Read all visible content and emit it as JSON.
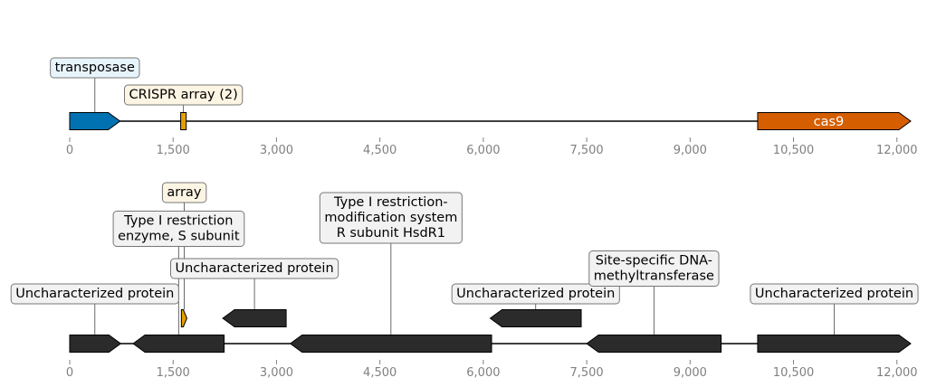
{
  "tracks": [
    {
      "id": "top",
      "axis": {
        "min": 0,
        "max": 12200,
        "ticks": [
          0,
          1500,
          3000,
          4500,
          6000,
          7500,
          9000,
          10500,
          12000
        ],
        "tick_labels": [
          "0",
          "1,500",
          "3,000",
          "4,500",
          "6,000",
          "7,500",
          "9,000",
          "10,500",
          "12,000"
        ]
      },
      "features": [
        {
          "name": "transposase-feature",
          "start": 0,
          "end": 730,
          "strand": 1,
          "row": 0,
          "color": "#0072B2"
        },
        {
          "name": "crispr-array-feature",
          "start": 1610,
          "end": 1690,
          "strand": 0,
          "row": 0,
          "color": "#E69F00"
        },
        {
          "name": "cas9-feature",
          "start": 9980,
          "end": 12200,
          "strand": 1,
          "row": 0,
          "color": "#D55E00",
          "inner_label": "cas9"
        }
      ],
      "labels": [
        {
          "text": "transposase",
          "pos": 365,
          "level": 1,
          "bg": "#e8f4fb"
        },
        {
          "text": "CRISPR array (2)",
          "pos": 1650,
          "level": 0,
          "bg": "#fdf5e4"
        }
      ]
    },
    {
      "id": "bottom",
      "axis": {
        "min": 0,
        "max": 12200,
        "ticks": [
          0,
          1500,
          3000,
          4500,
          6000,
          7500,
          9000,
          10500,
          12000
        ],
        "tick_labels": [
          "0",
          "1,500",
          "3,000",
          "4,500",
          "6,000",
          "7,500",
          "9,000",
          "10,500",
          "12,000"
        ]
      },
      "features": [
        {
          "name": "uncharacterized-protein-1",
          "start": 0,
          "end": 740,
          "strand": 1,
          "row": 0,
          "color": "#2b2b2b"
        },
        {
          "name": "type-i-restriction-s-subunit",
          "start": 920,
          "end": 2240,
          "strand": -1,
          "row": 0,
          "color": "#2b2b2b"
        },
        {
          "name": "crispr-array-small",
          "start": 1620,
          "end": 1700,
          "strand": 1,
          "row": 1,
          "color": "#E69F00"
        },
        {
          "name": "uncharacterized-protein-2",
          "start": 2220,
          "end": 3140,
          "strand": -1,
          "row": 1,
          "color": "#2b2b2b"
        },
        {
          "name": "type-i-restriction-r-subunit",
          "start": 3200,
          "end": 6120,
          "strand": -1,
          "row": 0,
          "color": "#2b2b2b"
        },
        {
          "name": "uncharacterized-protein-3",
          "start": 6100,
          "end": 7420,
          "strand": -1,
          "row": 1,
          "color": "#2b2b2b"
        },
        {
          "name": "site-specific-dna-methyltransferase",
          "start": 7500,
          "end": 9450,
          "strand": -1,
          "row": 0,
          "color": "#2b2b2b"
        },
        {
          "name": "uncharacterized-protein-4",
          "start": 9980,
          "end": 12200,
          "strand": 1,
          "row": 0,
          "color": "#2b2b2b"
        }
      ],
      "labels": [
        {
          "text": "Uncharacterized protein",
          "pos": 365,
          "level": 0,
          "bg": "#f2f2f2",
          "target_row": 0
        },
        {
          "text": "array",
          "pos": 1660,
          "level": 4,
          "bg": "#fdf5e4",
          "target_row": 1
        },
        {
          "text": "Type I restriction\nenzyme, S subunit",
          "pos": 1580,
          "level": 2,
          "bg": "#f2f2f2",
          "target_row": 0
        },
        {
          "text": "Uncharacterized protein",
          "pos": 2680,
          "level": 1,
          "bg": "#f2f2f2",
          "target_row": 1
        },
        {
          "text": "Type I restriction-\nmodification system\nR subunit HsdR1",
          "pos": 4660,
          "level": 3,
          "bg": "#f2f2f2",
          "target_row": 0
        },
        {
          "text": "Uncharacterized protein",
          "pos": 6760,
          "level": 0,
          "bg": "#f2f2f2",
          "target_row": 1
        },
        {
          "text": "Site-specific DNA-\nmethyltransferase",
          "pos": 8475,
          "level": 1,
          "bg": "#f2f2f2",
          "target_row": 0
        },
        {
          "text": "Uncharacterized protein",
          "pos": 11090,
          "level": 0,
          "bg": "#f2f2f2",
          "target_row": 0
        }
      ]
    }
  ]
}
